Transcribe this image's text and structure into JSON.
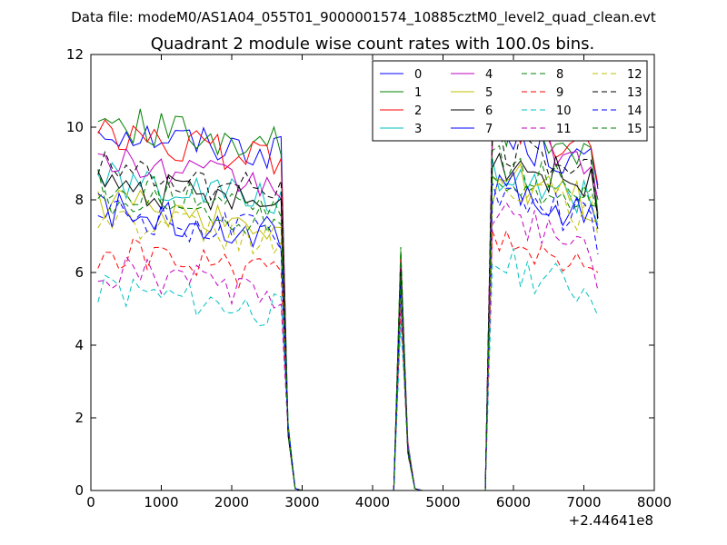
{
  "header": "Data file: modeM0/AS1A04_055T01_9000001574_10885cztM0_level2_quad_clean.evt",
  "chart_data": {
    "type": "line",
    "title": "Quadrant 2 module wise count rates with 100.0s bins.",
    "xlabel": "",
    "ylabel": "",
    "x_offset_label": "+2.44641e8",
    "xlim": [
      0,
      8000
    ],
    "ylim": [
      0,
      12
    ],
    "xticks": [
      0,
      1000,
      2000,
      3000,
      4000,
      5000,
      6000,
      7000,
      8000
    ],
    "yticks": [
      0,
      2,
      4,
      6,
      8,
      10,
      12
    ],
    "grid": false,
    "legend": {
      "placement": "top-right",
      "columns": 4
    },
    "segments": [
      {
        "x_start": 100,
        "x_end": 2700,
        "step": 100
      },
      {
        "x_start": 2800,
        "x_end": 2900,
        "step": 100
      },
      {
        "x_start": 3000,
        "x_end": 4300,
        "step": 100
      },
      {
        "x_start": 4300,
        "x_end": 4700,
        "step": 100
      },
      {
        "x_start": 4800,
        "x_end": 5600,
        "step": 100
      },
      {
        "x_start": 5600,
        "x_end": 7200,
        "step": 100
      }
    ],
    "series": [
      {
        "name": "0",
        "color": "#0000ff",
        "dash": "solid",
        "level1": 10.0,
        "level2": 9.4,
        "peak": 6.2,
        "end": 8.3
      },
      {
        "name": "1",
        "color": "#008000",
        "dash": "solid",
        "level1": 10.2,
        "level2": 9.6,
        "peak": 6.6,
        "end": 7.6
      },
      {
        "name": "2",
        "color": "#ff0000",
        "dash": "solid",
        "level1": 9.8,
        "level2": 9.8,
        "peak": 6.4,
        "end": 8.4
      },
      {
        "name": "3",
        "color": "#00bfbf",
        "dash": "solid",
        "level1": 8.6,
        "level2": 8.4,
        "peak": 5.9,
        "end": 7.3
      },
      {
        "name": "4",
        "color": "#bf00bf",
        "dash": "solid",
        "level1": 9.1,
        "level2": 9.6,
        "peak": 6.3,
        "end": 8.0
      },
      {
        "name": "5",
        "color": "#bfbf00",
        "dash": "solid",
        "level1": 8.0,
        "level2": 8.3,
        "peak": 5.8,
        "end": 7.4
      },
      {
        "name": "6",
        "color": "#000000",
        "dash": "solid",
        "level1": 8.5,
        "level2": 8.8,
        "peak": 6.0,
        "end": 7.5
      },
      {
        "name": "7",
        "color": "#0000ff",
        "dash": "solid",
        "level1": 7.8,
        "level2": 8.0,
        "peak": 5.6,
        "end": 7.2
      },
      {
        "name": "8",
        "color": "#008000",
        "dash": "dashed",
        "level1": 8.4,
        "level2": 8.6,
        "peak": 6.7,
        "end": 7.6
      },
      {
        "name": "9",
        "color": "#ff0000",
        "dash": "dashed",
        "level1": 6.6,
        "level2": 6.6,
        "peak": 5.0,
        "end": 6.0
      },
      {
        "name": "10",
        "color": "#00bfbf",
        "dash": "dashed",
        "level1": 5.6,
        "level2": 5.9,
        "peak": 4.6,
        "end": 4.8
      },
      {
        "name": "11",
        "color": "#bf00bf",
        "dash": "dashed",
        "level1": 6.1,
        "level2": 7.2,
        "peak": 5.2,
        "end": 5.5
      },
      {
        "name": "12",
        "color": "#bfbf00",
        "dash": "dashed",
        "level1": 7.5,
        "level2": 8.0,
        "peak": 5.5,
        "end": 7.0
      },
      {
        "name": "13",
        "color": "#000000",
        "dash": "dashed",
        "level1": 8.9,
        "level2": 9.2,
        "peak": 6.1,
        "end": 7.4
      },
      {
        "name": "14",
        "color": "#0000ff",
        "dash": "dashed",
        "level1": 7.7,
        "level2": 7.9,
        "peak": 5.7,
        "end": 6.5
      },
      {
        "name": "15",
        "color": "#008000",
        "dash": "dashed",
        "level1": 8.1,
        "level2": 8.3,
        "peak": 5.9,
        "end": 7.8
      }
    ]
  }
}
